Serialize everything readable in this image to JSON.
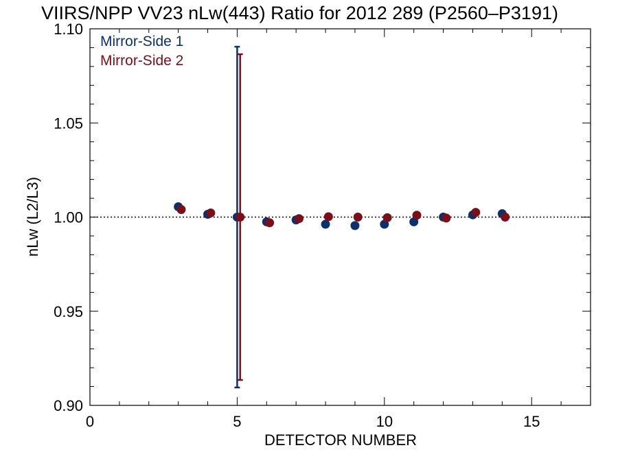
{
  "chart_data": {
    "type": "scatter",
    "title": "VIIRS/NPP VV23 nLw(443) Ratio for 2012 289 (P2560–P3191)",
    "xlabel": "DETECTOR NUMBER",
    "ylabel": "nLw (L2/L3)",
    "xlim": [
      0,
      17
    ],
    "ylim": [
      0.9,
      1.1
    ],
    "x_ticks": [
      0,
      5,
      10,
      15
    ],
    "x_tick_labels": [
      "0",
      "5",
      "10",
      "15"
    ],
    "y_ticks": [
      0.9,
      0.95,
      1.0,
      1.05,
      1.1
    ],
    "y_tick_labels": [
      "0.90",
      "0.95",
      "1.00",
      "1.05",
      "1.10"
    ],
    "reference_line": 1.0,
    "legend_position": "top-left",
    "colors": {
      "Mirror-Side 1": "#0d2f6b",
      "Mirror-Side 2": "#7a0f1a"
    },
    "series": [
      {
        "name": "Mirror-Side 1",
        "color": "#0d2f6b",
        "x": [
          3,
          4,
          5,
          6,
          7,
          8,
          9,
          10,
          11,
          12,
          13,
          14
        ],
        "y": [
          1.0055,
          1.0015,
          1.0,
          0.9975,
          0.9985,
          0.9962,
          0.9955,
          0.9962,
          0.9975,
          1.0,
          1.0012,
          1.0018
        ],
        "error_bars": [
          {
            "x": 5,
            "low": 0.9095,
            "high": 1.0905
          }
        ]
      },
      {
        "name": "Mirror-Side 2",
        "color": "#7a0f1a",
        "x": [
          3.1,
          4.1,
          5.1,
          6.1,
          7.1,
          8.1,
          9.1,
          10.1,
          11.1,
          12.1,
          13.1,
          14.1
        ],
        "y": [
          1.004,
          1.0022,
          1.0,
          0.997,
          0.9992,
          1.0002,
          1.0,
          0.9997,
          1.001,
          0.9995,
          1.0025,
          1.0
        ],
        "error_bars": [
          {
            "x": 5.1,
            "low": 0.9135,
            "high": 1.0865
          }
        ]
      }
    ]
  }
}
